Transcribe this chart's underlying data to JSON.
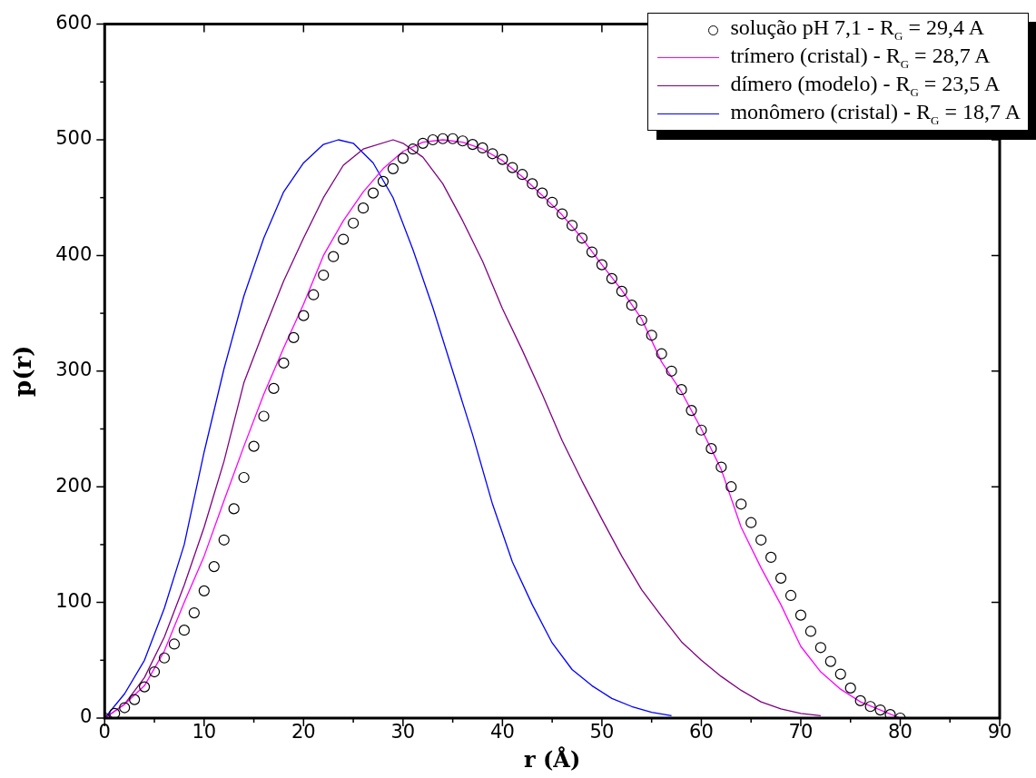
{
  "chart_data": {
    "type": "line",
    "xlabel": "r (Å)",
    "ylabel": "p(r)",
    "xlim": [
      0,
      90
    ],
    "xticks": [
      0,
      10,
      20,
      30,
      40,
      50,
      60,
      70,
      80,
      90
    ],
    "ylim": [
      0,
      600
    ],
    "yticks": [
      0,
      100,
      200,
      300,
      400,
      500,
      600
    ],
    "grid": false,
    "legend": "top right",
    "line_style": "solid",
    "series": [
      {
        "name": "solução  pH 7,1 - R$_{G}$ = 29,4 A",
        "type": "scatter",
        "marker": "circle",
        "color": "#000000",
        "x": [
          0,
          1,
          2,
          3,
          4,
          5,
          6,
          7,
          8,
          9,
          10,
          11,
          12,
          13,
          14,
          15,
          16,
          17,
          18,
          19,
          20,
          21,
          22,
          23,
          24,
          25,
          26,
          27,
          28,
          29,
          30,
          31,
          32,
          33,
          34,
          35,
          36,
          37,
          38,
          39,
          40,
          41,
          42,
          43,
          44,
          45,
          46,
          47,
          48,
          49,
          50,
          51,
          52,
          53,
          54,
          55,
          56,
          57,
          58,
          59,
          60,
          61,
          62,
          63,
          64,
          65,
          66,
          67,
          68,
          69,
          70,
          71,
          72,
          73,
          74,
          75,
          76,
          77,
          78,
          79,
          80
        ],
        "values": [
          0,
          4,
          9,
          16,
          27,
          40,
          52,
          64,
          76,
          91,
          110,
          131,
          154,
          181,
          208,
          235,
          261,
          285,
          307,
          329,
          348,
          366,
          383,
          399,
          414,
          428,
          441,
          454,
          464,
          475,
          484,
          492,
          497,
          500,
          501,
          501,
          499,
          496,
          493,
          488,
          483,
          476,
          470,
          462,
          454,
          446,
          436,
          426,
          415,
          403,
          392,
          380,
          369,
          357,
          344,
          331,
          315,
          300,
          284,
          266,
          249,
          233,
          217,
          200,
          185,
          169,
          154,
          139,
          121,
          106,
          89,
          75,
          61,
          49,
          38,
          26,
          15,
          10,
          7,
          3,
          0
        ]
      },
      {
        "name": "trímero  (cristal) - R$_{G}$ = 28,7 A",
        "color": "#ff00ff",
        "x": [
          0,
          2,
          4,
          6,
          8,
          10,
          12,
          14,
          16,
          18,
          20,
          22,
          24,
          26,
          28,
          30,
          32,
          34,
          36,
          38,
          40,
          42,
          44,
          46,
          48,
          50,
          52,
          54,
          56,
          58,
          60,
          62,
          64,
          66,
          68,
          70,
          72,
          74,
          76,
          78,
          80
        ],
        "values": [
          0,
          12,
          28,
          58,
          100,
          140,
          188,
          235,
          280,
          320,
          358,
          400,
          430,
          455,
          475,
          490,
          498,
          500,
          498,
          492,
          482,
          468,
          452,
          435,
          415,
          392,
          370,
          345,
          308,
          282,
          250,
          215,
          165,
          130,
          98,
          62,
          40,
          25,
          14,
          7,
          0
        ]
      },
      {
        "name": "dímero (modelo) - R$_{G}$ = 23,5 A",
        "color": "#800080",
        "x": [
          0,
          2,
          4,
          6,
          8,
          10,
          12,
          14,
          16,
          18,
          20,
          22,
          24,
          26,
          29,
          30,
          32,
          34,
          36,
          38,
          40,
          42,
          44,
          46,
          48,
          50,
          52,
          54,
          56,
          58,
          60,
          62,
          64,
          66,
          68,
          70,
          72
        ],
        "values": [
          0,
          12,
          35,
          70,
          115,
          165,
          222,
          290,
          335,
          378,
          415,
          450,
          478,
          492,
          500,
          497,
          485,
          462,
          430,
          395,
          354,
          318,
          280,
          240,
          205,
          172,
          140,
          111,
          88,
          66,
          50,
          36,
          24,
          14,
          8,
          4,
          2
        ]
      },
      {
        "name": "monômero (cristal) - R$_{G}$ = 18,7 A",
        "color": "#0000ff",
        "x": [
          0,
          2,
          4,
          6,
          8,
          10,
          12,
          14,
          16,
          18,
          20,
          22,
          23.5,
          25,
          27,
          29,
          31,
          33,
          35,
          37,
          39,
          41,
          43,
          45,
          47,
          49,
          51,
          53,
          55,
          57
        ],
        "values": [
          0,
          21,
          50,
          95,
          150,
          230,
          302,
          365,
          415,
          455,
          480,
          496,
          500,
          497,
          480,
          450,
          405,
          355,
          300,
          245,
          185,
          135,
          98,
          65,
          42,
          28,
          17,
          10,
          5,
          2
        ]
      }
    ]
  }
}
